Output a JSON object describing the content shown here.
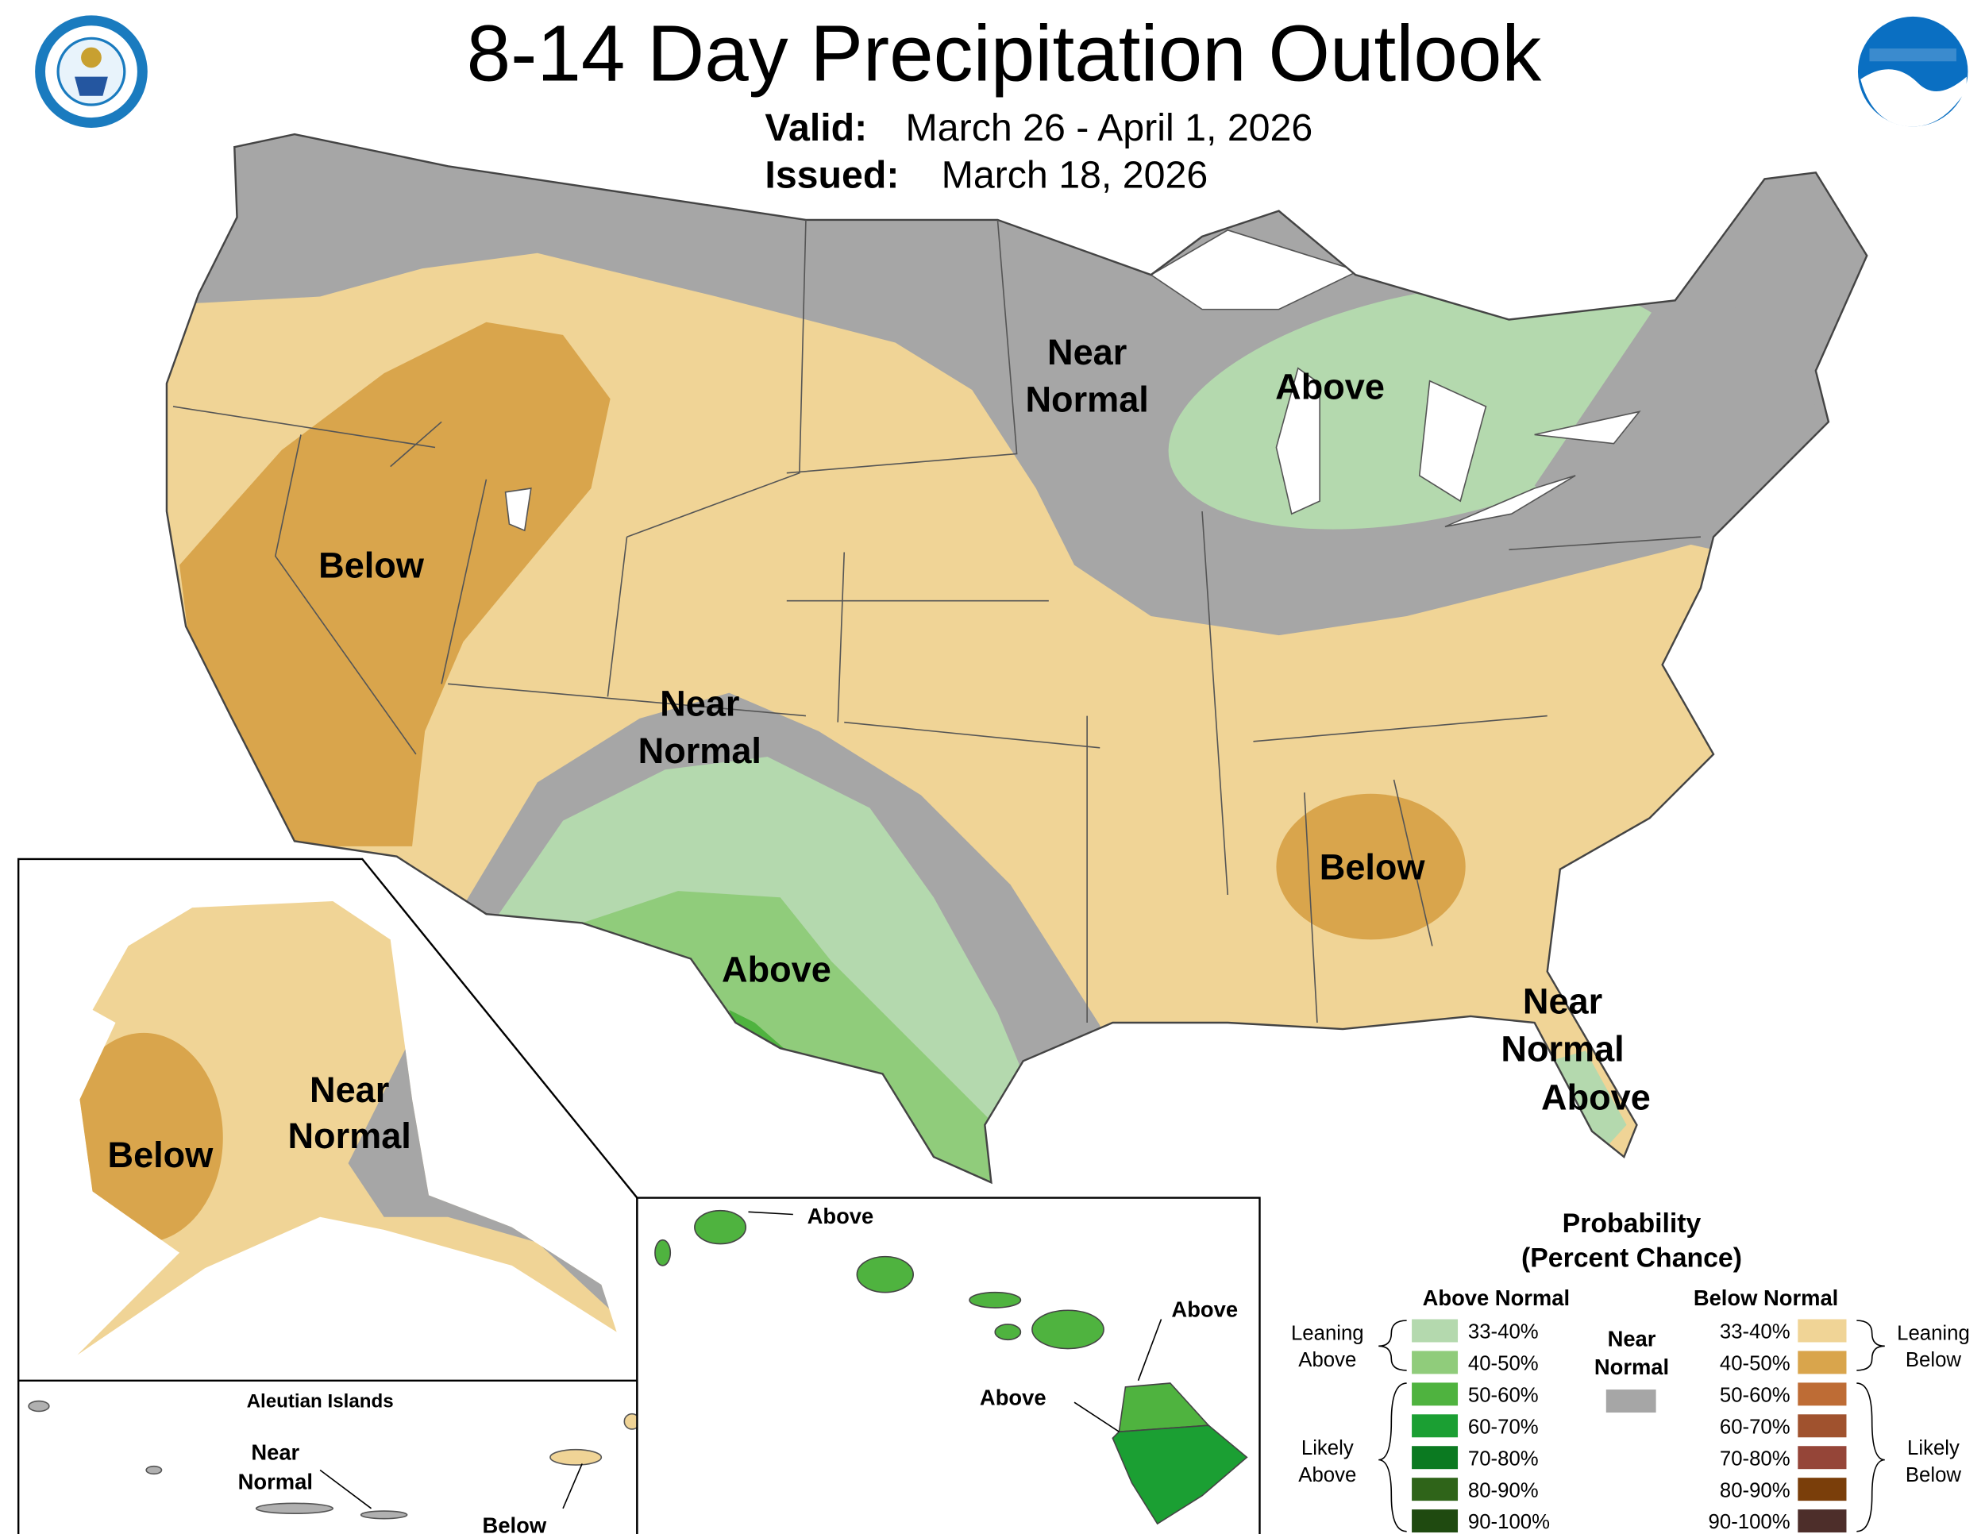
{
  "header": {
    "title": "8-14 Day Precipitation Outlook",
    "valid_label": "Valid:",
    "valid_text": "March 26 - April 1, 2026",
    "issued_label": "Issued:",
    "issued_text": "March 18, 2026"
  },
  "map_labels": {
    "conus": [
      {
        "lines": [
          "Near",
          "Normal"
        ]
      },
      {
        "lines": [
          "Above"
        ]
      },
      {
        "lines": [
          "Below"
        ]
      },
      {
        "lines": [
          "Near",
          "Normal"
        ]
      },
      {
        "lines": [
          "Above"
        ]
      },
      {
        "lines": [
          "Below"
        ]
      },
      {
        "lines": [
          "Near",
          "Normal"
        ]
      },
      {
        "lines": [
          "Above"
        ]
      }
    ],
    "alaska": [
      {
        "lines": [
          "Near",
          "Normal"
        ]
      },
      {
        "lines": [
          "Below"
        ]
      }
    ],
    "hawaii": [
      {
        "lines": [
          "Above"
        ]
      },
      {
        "lines": [
          "Above"
        ]
      },
      {
        "lines": [
          "Above"
        ]
      }
    ],
    "aleutian": {
      "title": "Aleutian Islands",
      "labels": [
        {
          "lines": [
            "Near",
            "Normal"
          ]
        },
        {
          "lines": [
            "Below"
          ]
        }
      ]
    }
  },
  "legend": {
    "title": [
      "Probability",
      "(Percent Chance)"
    ],
    "above_normal": {
      "heading": "Above Normal",
      "rows": [
        {
          "label": "33-40%",
          "color": "#b4d9ae"
        },
        {
          "label": "40-50%",
          "color": "#90cc7b"
        },
        {
          "label": "50-60%",
          "color": "#4fb33f"
        },
        {
          "label": "60-70%",
          "color": "#1b9f33"
        },
        {
          "label": "70-80%",
          "color": "#0b7a21"
        },
        {
          "label": "80-90%",
          "color": "#2f6419"
        },
        {
          "label": "90-100%",
          "color": "#1f4a10"
        }
      ]
    },
    "below_normal": {
      "heading": "Below Normal",
      "rows": [
        {
          "label": "33-40%",
          "color": "#f0d496"
        },
        {
          "label": "40-50%",
          "color": "#d9a54c"
        },
        {
          "label": "50-60%",
          "color": "#be6c35"
        },
        {
          "label": "60-70%",
          "color": "#a0522e"
        },
        {
          "label": "70-80%",
          "color": "#954538"
        },
        {
          "label": "80-90%",
          "color": "#7a3e0a"
        },
        {
          "label": "90-100%",
          "color": "#4d2e2a"
        }
      ]
    },
    "near_normal": {
      "lines": [
        "Near",
        "Normal"
      ],
      "color": "#a6a6a6"
    },
    "leaning_above": [
      "Leaning",
      "Above"
    ],
    "likely_above": [
      "Likely",
      "Above"
    ],
    "leaning_below": [
      "Leaning",
      "Below"
    ],
    "likely_below": [
      "Likely",
      "Below"
    ]
  }
}
